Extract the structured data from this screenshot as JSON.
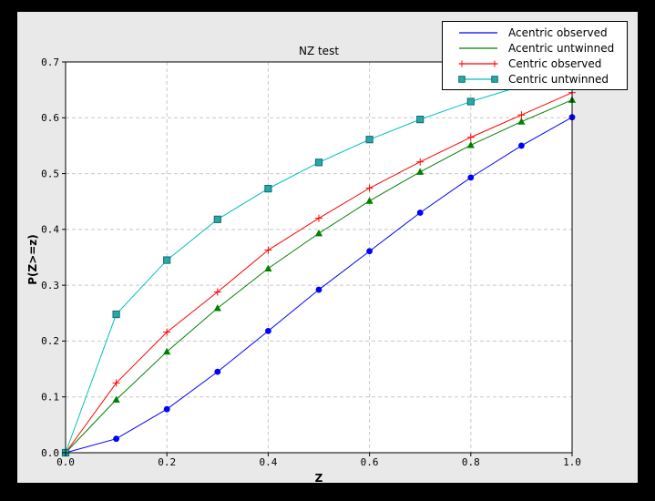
{
  "window": {
    "background": "#000000",
    "figure_bg": "#e9e9e9",
    "plot_bg": "#ffffff",
    "grid_color": "#c8c8c8",
    "axis_color": "#000000"
  },
  "chart_data": {
    "type": "line",
    "title": "NZ test",
    "xlabel": "Z",
    "ylabel": "P(Z>=z)",
    "xlim": [
      0.0,
      1.0
    ],
    "ylim": [
      0.0,
      0.7
    ],
    "xticks": [
      0.0,
      0.2,
      0.4,
      0.6,
      0.8,
      1.0
    ],
    "xtick_labels": [
      "0.0",
      "0.2",
      "0.4",
      "0.6",
      "0.8",
      "1.0"
    ],
    "yticks": [
      0.0,
      0.1,
      0.2,
      0.3,
      0.4,
      0.5,
      0.6,
      0.7
    ],
    "ytick_labels": [
      "0.0",
      "0.1",
      "0.2",
      "0.3",
      "0.4",
      "0.5",
      "0.6",
      "0.7"
    ],
    "grid": true,
    "legend_position": "upper right",
    "x": [
      0.0,
      0.1,
      0.2,
      0.3,
      0.4,
      0.5,
      0.6,
      0.7,
      0.8,
      0.9,
      1.0
    ],
    "series": [
      {
        "name": "Acentric observed",
        "color": "#0000ff",
        "marker": "circle",
        "legend_marker": "none",
        "values": [
          0.0,
          0.025,
          0.078,
          0.145,
          0.218,
          0.292,
          0.361,
          0.43,
          0.493,
          0.55,
          0.601
        ]
      },
      {
        "name": "Acentric untwinned",
        "color": "#008000",
        "marker": "triangle",
        "legend_marker": "none",
        "values": [
          0.0,
          0.095,
          0.181,
          0.259,
          0.33,
          0.393,
          0.451,
          0.503,
          0.551,
          0.593,
          0.632
        ]
      },
      {
        "name": "Centric observed",
        "color": "#ff0000",
        "marker": "plus",
        "legend_marker": "plus",
        "values": [
          0.0,
          0.125,
          0.216,
          0.288,
          0.363,
          0.42,
          0.474,
          0.521,
          0.565,
          0.605,
          0.645
        ]
      },
      {
        "name": "Centric untwinned",
        "color": "#00bfbf",
        "marker": "square",
        "marker_fill": "#2aa8a8",
        "marker_edge": "#0e6e6e",
        "legend_marker": "square",
        "values": [
          0.0,
          0.248,
          0.345,
          0.418,
          0.473,
          0.52,
          0.561,
          0.597,
          0.629,
          0.657,
          0.683
        ]
      }
    ]
  }
}
